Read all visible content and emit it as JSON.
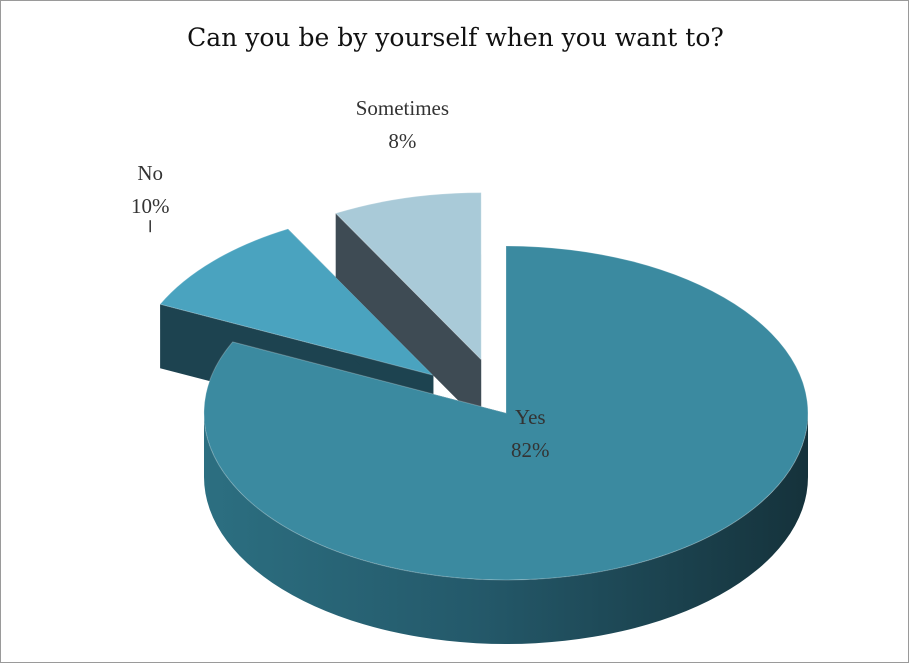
{
  "chart_data": {
    "type": "pie",
    "title": "Can you be by yourself when you want to?",
    "slices": [
      {
        "label": "Yes",
        "value": 82,
        "display": "82%",
        "color": "#3b8aa0"
      },
      {
        "label": "No",
        "value": 10,
        "display": "10%",
        "color": "#4aa3bf"
      },
      {
        "label": "Sometimes",
        "value": 8,
        "display": "8%",
        "color": "#a9cad8"
      }
    ],
    "legend": "none",
    "style": "3d-exploded"
  }
}
